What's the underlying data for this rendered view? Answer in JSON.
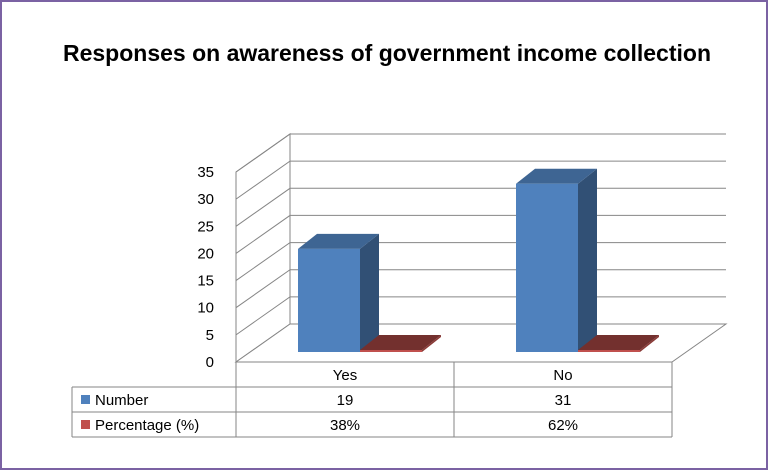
{
  "chart_data": {
    "type": "bar",
    "title": "Responses on awareness of government income collection",
    "categories": [
      "Yes",
      "No"
    ],
    "series": [
      {
        "name": "Number",
        "values": [
          19,
          31
        ],
        "labels": [
          "19",
          "31"
        ],
        "color": "#4f81bd"
      },
      {
        "name": "Percentage (%)",
        "values": [
          0.38,
          0.62
        ],
        "labels": [
          "38%",
          "62%"
        ],
        "color": "#c0504d"
      }
    ],
    "ylim": [
      0,
      35
    ],
    "yticks": [
      "0",
      "5",
      "10",
      "15",
      "20",
      "25",
      "30",
      "35"
    ],
    "grid": true,
    "legend": "data-table",
    "style": "3d-column"
  }
}
